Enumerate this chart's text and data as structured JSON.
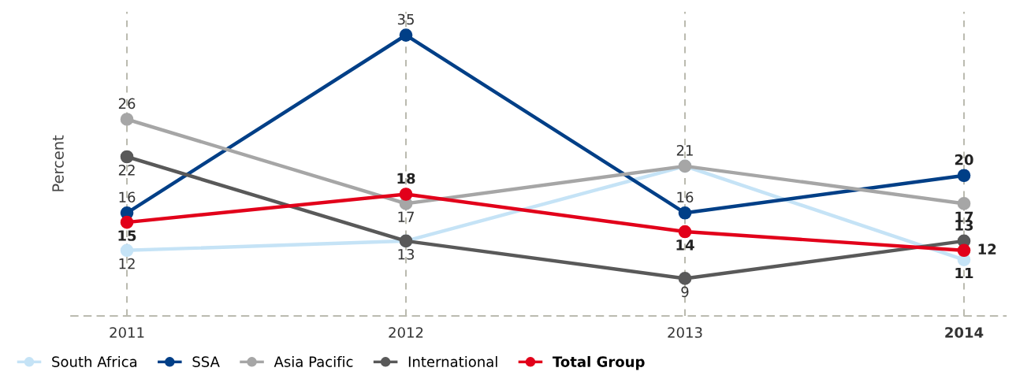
{
  "chart_data": {
    "type": "line",
    "ylabel": "Percent",
    "categories": [
      "2011",
      "2012",
      "2013",
      "2014"
    ],
    "series": [
      {
        "name": "South Africa",
        "color": "#c5e3f6",
        "values": [
          12,
          13,
          21,
          11
        ],
        "value_labels": [
          "12",
          null,
          null,
          "11"
        ]
      },
      {
        "name": "SSA",
        "color": "#003f87",
        "values": [
          16,
          35,
          16,
          20
        ],
        "value_labels": [
          "16",
          "35",
          "16",
          "20"
        ]
      },
      {
        "name": "Asia Pacific",
        "color": "#a6a6a6",
        "values": [
          26,
          17,
          21,
          17
        ],
        "value_labels": [
          "26",
          "17",
          "21",
          "17"
        ]
      },
      {
        "name": "International",
        "color": "#595959",
        "values": [
          22,
          13,
          9,
          13
        ],
        "value_labels": [
          "22",
          "13",
          "9",
          "13"
        ]
      },
      {
        "name": "Total Group",
        "color": "#e2001a",
        "values": [
          15,
          18,
          14,
          12
        ],
        "value_labels": [
          "15",
          "18",
          "14",
          "12"
        ]
      }
    ],
    "ylim": [
      5,
      37.5
    ],
    "tick_labels": "x",
    "grid": "x",
    "legend": "bottom left",
    "marker": "circle",
    "line_style": "solid"
  }
}
